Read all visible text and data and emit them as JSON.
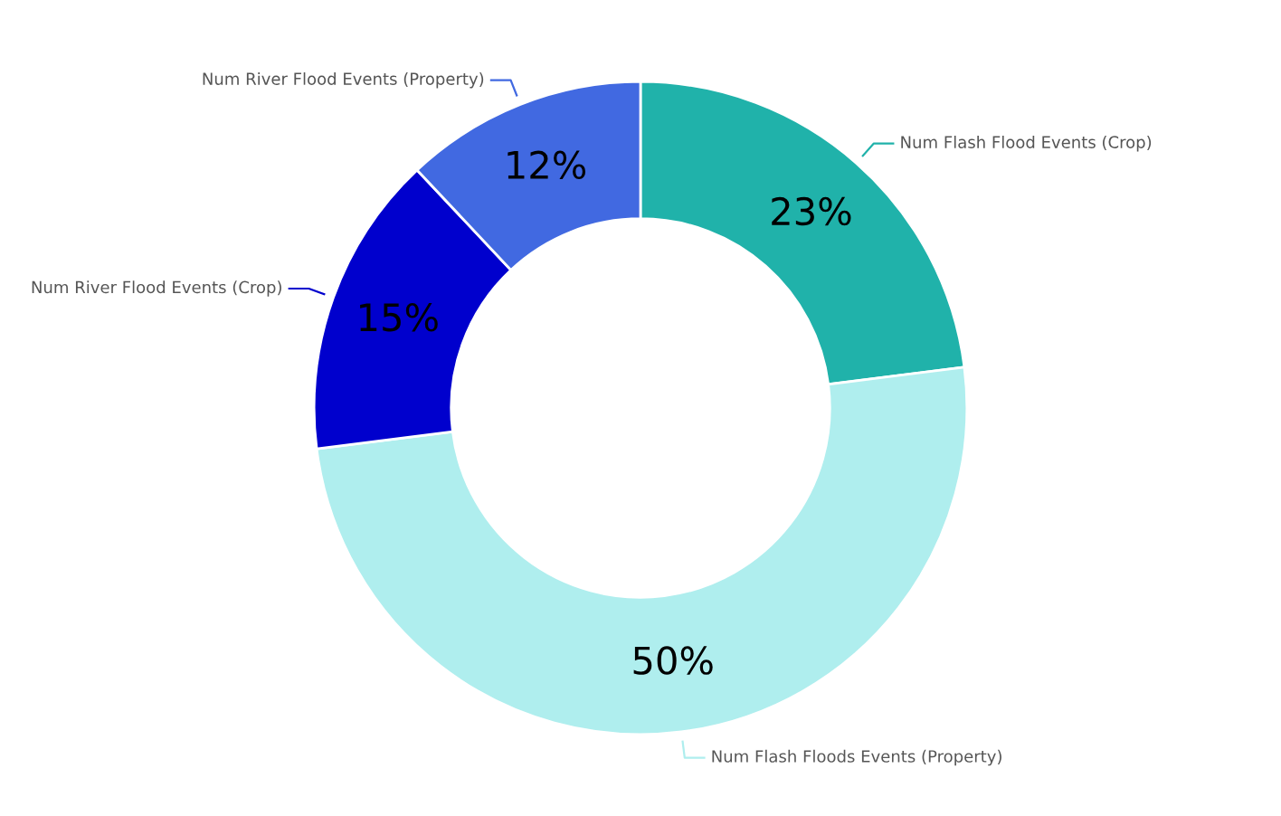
{
  "chart_data": {
    "type": "donut",
    "categories": [
      "Num Flash Flood Events (Crop)",
      "Num Flash Floods Events (Property)",
      "Num River Flood Events (Crop)",
      "Num River Flood Events (Property)"
    ],
    "values": [
      23,
      50,
      15,
      12
    ],
    "colors": [
      "#20b2aa",
      "#afeeee",
      "#0000cd",
      "#4169e1"
    ],
    "value_labels": [
      "23%",
      "50%",
      "15%",
      "12%"
    ]
  }
}
